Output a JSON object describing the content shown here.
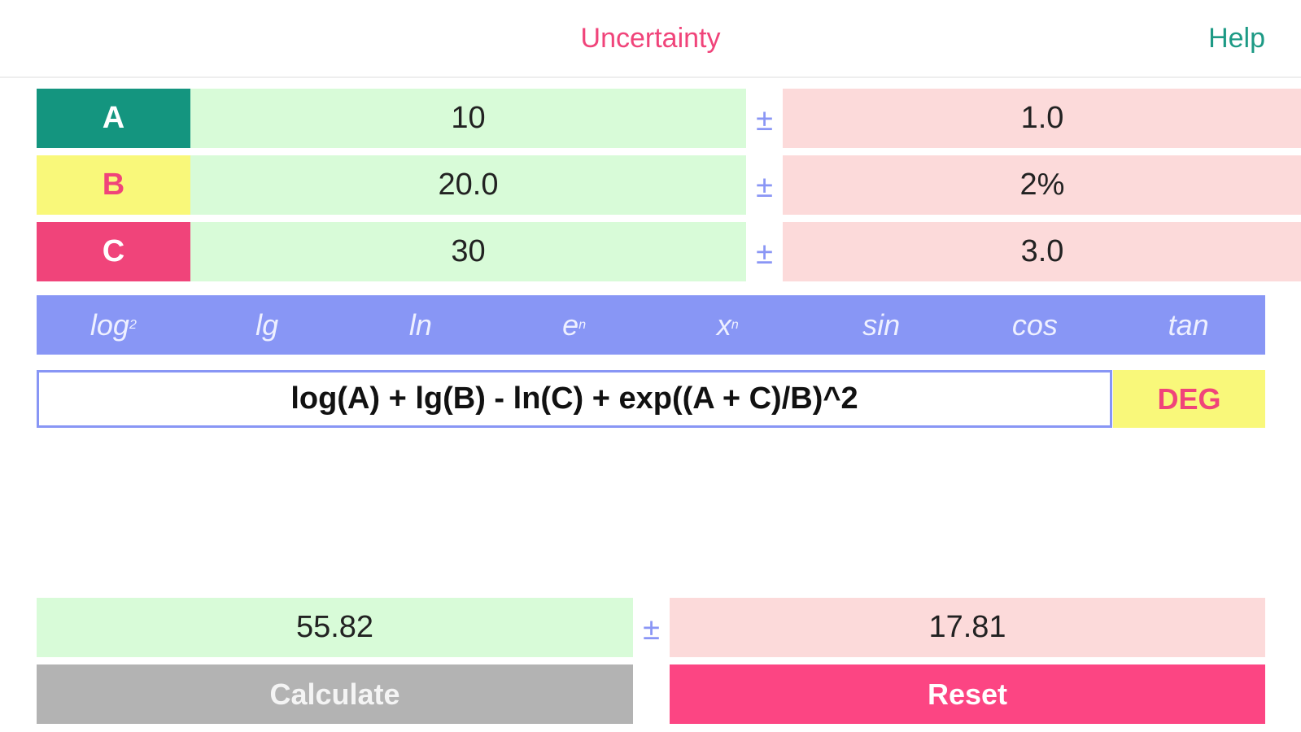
{
  "header": {
    "title": "Uncertainty",
    "help_label": "Help"
  },
  "variables": [
    {
      "name": "A",
      "value": "10",
      "uncertainty": "1.0",
      "label_bg": "#14957f",
      "label_color": "#ffffff"
    },
    {
      "name": "B",
      "value": "20.0",
      "uncertainty": "2%",
      "label_bg": "#f9f87a",
      "label_color": "#f0447a"
    },
    {
      "name": "C",
      "value": "30",
      "uncertainty": "3.0",
      "label_bg": "#f0447a",
      "label_color": "#ffffff"
    }
  ],
  "plus_minus": "±",
  "functions": {
    "log2": {
      "base": "log",
      "sub": "2"
    },
    "lg": "lg",
    "ln": "ln",
    "exp": {
      "base": "e",
      "sup": "n"
    },
    "pow": {
      "base": "x",
      "sup": "n"
    },
    "sin": "sin",
    "cos": "cos",
    "tan": "tan"
  },
  "formula": "log(A) + lg(B) - ln(C) + exp((A + C)/B)^2",
  "angle_mode": "DEG",
  "result": {
    "value": "55.82",
    "uncertainty": "17.81"
  },
  "buttons": {
    "calculate": "Calculate",
    "reset": "Reset"
  },
  "colors": {
    "accent_pink": "#f0447a",
    "help_teal": "#1d9a85",
    "function_bar": "#8896f5",
    "value_bg": "#d8fbd8",
    "uncertainty_bg": "#fcdada"
  }
}
